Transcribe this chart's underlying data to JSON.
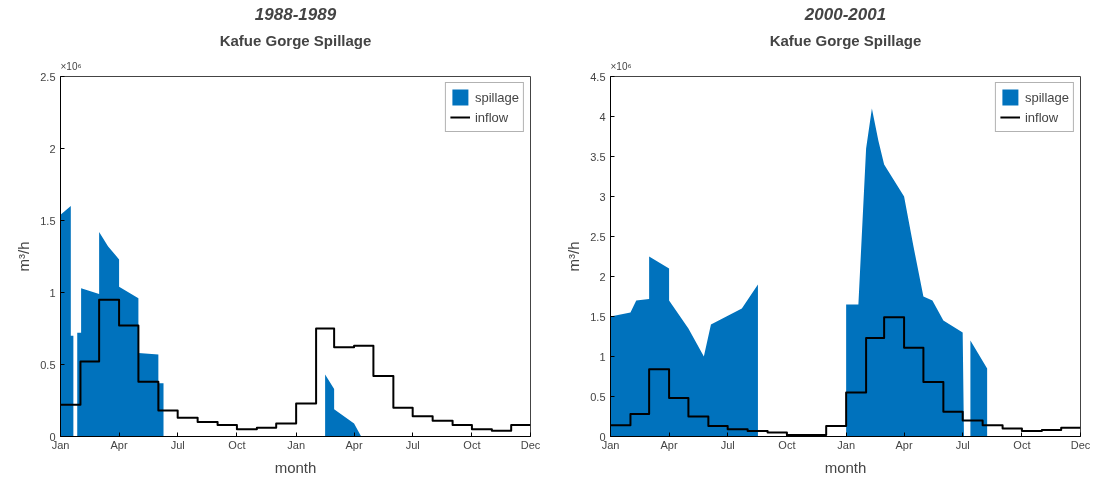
{
  "chart_data": [
    {
      "type": "area",
      "title": "1988-1989",
      "subtitle": "Kafue Gorge Spillage",
      "xlabel": "month",
      "ylabel": "m³/h",
      "annotations": [
        "×10⁶"
      ],
      "xlim": [
        "1988-01-01",
        "1989-12-31"
      ],
      "xticks": [
        {
          "value": "1988-01-01",
          "label": "Jan"
        },
        {
          "value": "1988-04-01",
          "label": "Apr"
        },
        {
          "value": "1988-07-01",
          "label": "Jul"
        },
        {
          "value": "1988-10-01",
          "label": "Oct"
        },
        {
          "value": "1989-01-01",
          "label": "Jan"
        },
        {
          "value": "1989-04-01",
          "label": "Apr"
        },
        {
          "value": "1989-07-01",
          "label": "Jul"
        },
        {
          "value": "1989-10-01",
          "label": "Oct"
        },
        {
          "value": "1989-12-31",
          "label": "Dec"
        }
      ],
      "ylim": [
        0,
        2.5
      ],
      "yticks": [
        0,
        0.5,
        1,
        1.5,
        2,
        2.5
      ],
      "grid": false,
      "legend": "top right",
      "series": [
        {
          "name": "spillage",
          "color": "#0072bd",
          "x": [
            "1988-01-01",
            "1988-01-17",
            "1988-01-17",
            "1988-01-21",
            "1988-01-21",
            "1988-01-27",
            "1988-01-27",
            "1988-02-02",
            "1988-02-02",
            "1988-03-01",
            "1988-03-01",
            "1988-03-15",
            "1988-04-01",
            "1988-04-01",
            "1988-05-01",
            "1988-05-01",
            "1988-06-01",
            "1988-06-01",
            "1988-06-09",
            "1988-06-09",
            "1989-02-15",
            "1989-02-15",
            "1989-03-01",
            "1989-03-01",
            "1989-04-01",
            "1989-04-12"
          ],
          "values": [
            1.54,
            1.6,
            0.7,
            0.7,
            0,
            0,
            0.72,
            0.72,
            1.03,
            0.99,
            1.42,
            1.32,
            1.23,
            1.04,
            0.96,
            0.58,
            0.57,
            0.37,
            0.37,
            0,
            0,
            0.43,
            0.33,
            0.19,
            0.09,
            0
          ]
        },
        {
          "name": "inflow",
          "type": "step",
          "color": "#000000",
          "x": [
            "1988-01-01",
            "1988-02-01",
            "1988-03-01",
            "1988-04-01",
            "1988-05-01",
            "1988-06-01",
            "1988-07-01",
            "1988-08-01",
            "1988-09-01",
            "1988-10-01",
            "1988-11-01",
            "1988-12-01",
            "1989-01-01",
            "1989-02-01",
            "1989-03-01",
            "1989-04-01",
            "1989-05-01",
            "1989-06-01",
            "1989-07-01",
            "1989-08-01",
            "1989-09-01",
            "1989-10-01",
            "1989-11-01",
            "1989-12-01",
            "1989-12-31"
          ],
          "values": [
            0.22,
            0.52,
            0.95,
            0.77,
            0.38,
            0.18,
            0.13,
            0.1,
            0.08,
            0.05,
            0.06,
            0.09,
            0.23,
            0.75,
            0.62,
            0.63,
            0.42,
            0.2,
            0.14,
            0.11,
            0.08,
            0.05,
            0.04,
            0.08,
            0.08
          ]
        }
      ]
    },
    {
      "type": "area",
      "title": "2000-2001",
      "subtitle": "Kafue Gorge Spillage",
      "xlabel": "month",
      "ylabel": "m³/h",
      "annotations": [
        "×10⁶"
      ],
      "xlim": [
        "2000-01-01",
        "2001-12-31"
      ],
      "xticks": [
        {
          "value": "2000-01-01",
          "label": "Jan"
        },
        {
          "value": "2000-04-01",
          "label": "Apr"
        },
        {
          "value": "2000-07-01",
          "label": "Jul"
        },
        {
          "value": "2000-10-01",
          "label": "Oct"
        },
        {
          "value": "2001-01-01",
          "label": "Jan"
        },
        {
          "value": "2001-04-01",
          "label": "Apr"
        },
        {
          "value": "2001-07-01",
          "label": "Jul"
        },
        {
          "value": "2001-10-01",
          "label": "Oct"
        },
        {
          "value": "2001-12-31",
          "label": "Dec"
        }
      ],
      "ylim": [
        0,
        4.5
      ],
      "yticks": [
        0,
        0.5,
        1,
        1.5,
        2,
        2.5,
        3,
        3.5,
        4,
        4.5
      ],
      "grid": false,
      "legend": "top right",
      "series": [
        {
          "name": "spillage",
          "color": "#0072bd",
          "x": [
            "2000-01-01",
            "2000-01-01",
            "2000-02-01",
            "2000-02-10",
            "2000-03-01",
            "2000-03-01",
            "2000-04-01",
            "2000-04-01",
            "2000-05-01",
            "2000-05-25",
            "2000-06-05",
            "2000-07-23",
            "2000-08-17",
            "2000-08-17",
            "2001-01-01",
            "2001-01-01",
            "2001-01-20",
            "2001-02-01",
            "2001-02-10",
            "2001-02-20",
            "2001-03-01",
            "2001-04-01",
            "2001-04-15",
            "2001-05-01",
            "2001-05-15",
            "2001-06-01",
            "2001-07-01",
            "2001-07-03",
            "2001-07-13",
            "2001-07-13",
            "2001-08-08",
            "2001-08-08"
          ],
          "values": [
            0,
            1.5,
            1.55,
            1.7,
            1.72,
            2.25,
            2.1,
            1.7,
            1.35,
            1.0,
            1.4,
            1.6,
            1.9,
            0,
            0,
            1.65,
            1.65,
            3.6,
            4.1,
            3.7,
            3.4,
            3.0,
            2.4,
            1.75,
            1.7,
            1.45,
            1.3,
            0,
            0,
            1.2,
            0.85,
            0
          ]
        },
        {
          "name": "inflow",
          "type": "step",
          "color": "#000000",
          "x": [
            "2000-01-01",
            "2000-02-01",
            "2000-03-01",
            "2000-04-01",
            "2000-05-01",
            "2000-06-01",
            "2000-07-01",
            "2000-08-01",
            "2000-09-01",
            "2000-10-01",
            "2000-11-01",
            "2000-12-01",
            "2001-01-01",
            "2001-02-01",
            "2001-03-01",
            "2001-04-01",
            "2001-05-01",
            "2001-06-01",
            "2001-07-01",
            "2001-08-01",
            "2001-09-01",
            "2001-10-01",
            "2001-11-01",
            "2001-12-01",
            "2001-12-31"
          ],
          "values": [
            0.14,
            0.28,
            0.84,
            0.48,
            0.25,
            0.13,
            0.09,
            0.07,
            0.05,
            0.02,
            0.02,
            0.13,
            0.55,
            1.23,
            1.49,
            1.11,
            0.68,
            0.31,
            0.2,
            0.14,
            0.1,
            0.07,
            0.08,
            0.11,
            0.11
          ]
        }
      ]
    }
  ]
}
